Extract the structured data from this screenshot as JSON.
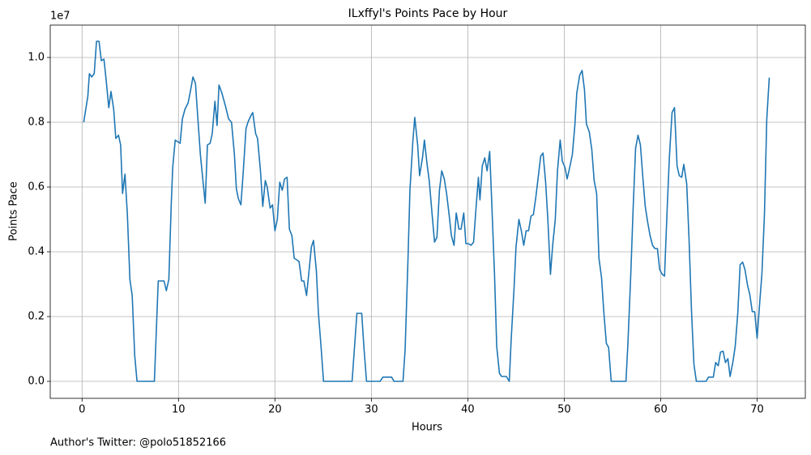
{
  "chart_data": {
    "type": "line",
    "title": "ILxffyl's Points Pace by Hour",
    "xlabel": "Hours",
    "ylabel": "Points Pace",
    "y_offset_label": "1e7",
    "footer": "Author's Twitter: @polo51852166",
    "xlim": [
      -3.3,
      75.0
    ],
    "ylim": [
      -0.0525,
      1.1
    ],
    "xticks": [
      0,
      10,
      20,
      30,
      40,
      50,
      60,
      70
    ],
    "yticks": [
      {
        "value": 0,
        "label": "0.0"
      },
      {
        "value": 0.2,
        "label": "0.2"
      },
      {
        "value": 0.4,
        "label": "0.4"
      },
      {
        "value": 0.6,
        "label": "0.6"
      },
      {
        "value": 0.8,
        "label": "0.8"
      },
      {
        "value": 1.0,
        "label": "1.0"
      }
    ],
    "grid": true,
    "series": [
      {
        "color": "#1f77b4",
        "x": [
          0.17,
          0.6,
          0.76,
          1.0,
          1.26,
          1.5,
          1.76,
          2.0,
          2.27,
          2.5,
          2.77,
          3.0,
          3.28,
          3.5,
          3.78,
          4.0,
          4.2,
          4.45,
          4.7,
          4.96,
          5.2,
          5.46,
          5.7,
          7.5,
          7.9,
          8.5,
          8.74,
          9.0,
          9.24,
          9.4,
          9.66,
          10.17,
          10.4,
          10.67,
          11.0,
          11.26,
          11.5,
          11.76,
          12.0,
          12.27,
          12.5,
          12.77,
          13.0,
          13.28,
          13.5,
          13.78,
          14.0,
          14.2,
          14.5,
          14.87,
          15.2,
          15.5,
          15.8,
          16.0,
          16.2,
          16.47,
          16.7,
          17.0,
          17.2,
          17.5,
          17.7,
          18.0,
          18.2,
          18.5,
          18.74,
          19.0,
          19.2,
          19.5,
          19.75,
          20.0,
          20.25,
          20.5,
          20.76,
          21.0,
          21.26,
          21.5,
          21.76,
          22.0,
          22.27,
          22.5,
          22.77,
          23.0,
          23.28,
          23.5,
          23.78,
          24.0,
          24.3,
          24.5,
          24.8,
          25.04,
          28.0,
          28.24,
          28.5,
          29.0,
          29.24,
          29.5,
          30.9,
          31.2,
          32.1,
          32.35,
          33.28,
          33.5,
          33.8,
          34.0,
          34.3,
          34.5,
          34.8,
          35.0,
          35.3,
          35.5,
          35.8,
          36.0,
          36.3,
          36.55,
          36.8,
          37.06,
          37.3,
          37.56,
          37.8,
          38.06,
          38.3,
          38.57,
          38.8,
          39.08,
          39.3,
          39.58,
          39.8,
          40.08,
          40.34,
          40.6,
          40.84,
          41.1,
          41.26,
          41.5,
          41.76,
          42.0,
          42.27,
          42.5,
          42.77,
          43.0,
          43.28,
          43.5,
          44.0,
          44.3,
          44.5,
          44.8,
          45.0,
          45.3,
          45.55,
          45.8,
          46.05,
          46.3,
          46.55,
          46.8,
          47.06,
          47.3,
          47.56,
          47.8,
          48.07,
          48.3,
          48.57,
          48.8,
          49.07,
          49.3,
          49.58,
          49.8,
          50.08,
          50.3,
          50.6,
          50.84,
          51.1,
          51.3,
          51.6,
          51.85,
          52.1,
          52.3,
          52.6,
          52.86,
          53.1,
          53.36,
          53.6,
          53.87,
          54.1,
          54.37,
          54.6,
          54.87,
          56.4,
          56.6,
          56.9,
          57.14,
          57.4,
          57.65,
          57.9,
          58.15,
          58.4,
          58.66,
          58.9,
          59.16,
          59.4,
          59.66,
          59.9,
          60.17,
          60.4,
          60.67,
          60.9,
          61.18,
          61.43,
          61.7,
          61.93,
          62.18,
          62.4,
          62.7,
          62.94,
          63.2,
          63.45,
          63.7,
          64.7,
          64.96,
          65.46,
          65.7,
          65.97,
          66.2,
          66.47,
          66.72,
          66.97,
          67.2,
          67.48,
          67.73,
          68.0,
          68.24,
          68.5,
          68.74,
          69.0,
          69.24,
          69.5,
          69.75,
          70.0,
          70.25,
          70.5,
          70.76,
          71.0,
          71.26
        ],
        "values": [
          0.8,
          0.88,
          0.95,
          0.94,
          0.95,
          1.05,
          1.05,
          0.99,
          0.995,
          0.93,
          0.845,
          0.895,
          0.84,
          0.75,
          0.76,
          0.73,
          0.58,
          0.64,
          0.515,
          0.315,
          0.265,
          0.08,
          0,
          0,
          0.31,
          0.31,
          0.28,
          0.315,
          0.54,
          0.66,
          0.745,
          0.735,
          0.81,
          0.84,
          0.86,
          0.9,
          0.94,
          0.92,
          0.815,
          0.7,
          0.63,
          0.55,
          0.73,
          0.735,
          0.765,
          0.865,
          0.79,
          0.915,
          0.89,
          0.85,
          0.81,
          0.8,
          0.7,
          0.595,
          0.565,
          0.545,
          0.64,
          0.78,
          0.8,
          0.82,
          0.83,
          0.765,
          0.75,
          0.65,
          0.54,
          0.62,
          0.6,
          0.535,
          0.545,
          0.465,
          0.5,
          0.615,
          0.59,
          0.625,
          0.63,
          0.47,
          0.45,
          0.38,
          0.375,
          0.37,
          0.31,
          0.31,
          0.265,
          0.33,
          0.415,
          0.435,
          0.34,
          0.215,
          0.1,
          0,
          0,
          0.1,
          0.21,
          0.21,
          0.1,
          0,
          0,
          0.013,
          0.013,
          0,
          0,
          0.098,
          0.38,
          0.59,
          0.74,
          0.815,
          0.73,
          0.635,
          0.69,
          0.745,
          0.665,
          0.62,
          0.515,
          0.43,
          0.445,
          0.59,
          0.65,
          0.625,
          0.58,
          0.515,
          0.45,
          0.42,
          0.52,
          0.47,
          0.47,
          0.52,
          0.425,
          0.425,
          0.42,
          0.43,
          0.53,
          0.63,
          0.56,
          0.665,
          0.69,
          0.65,
          0.71,
          0.54,
          0.33,
          0.107,
          0.025,
          0.015,
          0.015,
          0,
          0.13,
          0.29,
          0.415,
          0.5,
          0.465,
          0.42,
          0.465,
          0.465,
          0.51,
          0.515,
          0.57,
          0.63,
          0.695,
          0.705,
          0.615,
          0.5,
          0.33,
          0.42,
          0.5,
          0.65,
          0.745,
          0.68,
          0.66,
          0.625,
          0.665,
          0.7,
          0.79,
          0.89,
          0.945,
          0.96,
          0.9,
          0.795,
          0.77,
          0.715,
          0.62,
          0.58,
          0.38,
          0.32,
          0.215,
          0.117,
          0.105,
          0,
          0,
          0.115,
          0.33,
          0.53,
          0.72,
          0.76,
          0.73,
          0.63,
          0.54,
          0.49,
          0.45,
          0.42,
          0.41,
          0.41,
          0.345,
          0.33,
          0.325,
          0.53,
          0.69,
          0.83,
          0.845,
          0.665,
          0.635,
          0.63,
          0.67,
          0.61,
          0.44,
          0.215,
          0.052,
          0,
          0,
          0.013,
          0.013,
          0.058,
          0.048,
          0.09,
          0.093,
          0.058,
          0.07,
          0.015,
          0.058,
          0.108,
          0.213,
          0.36,
          0.368,
          0.345,
          0.298,
          0.268,
          0.215,
          0.215,
          0.133,
          0.235,
          0.333,
          0.515,
          0.808,
          0.938
        ]
      }
    ]
  }
}
